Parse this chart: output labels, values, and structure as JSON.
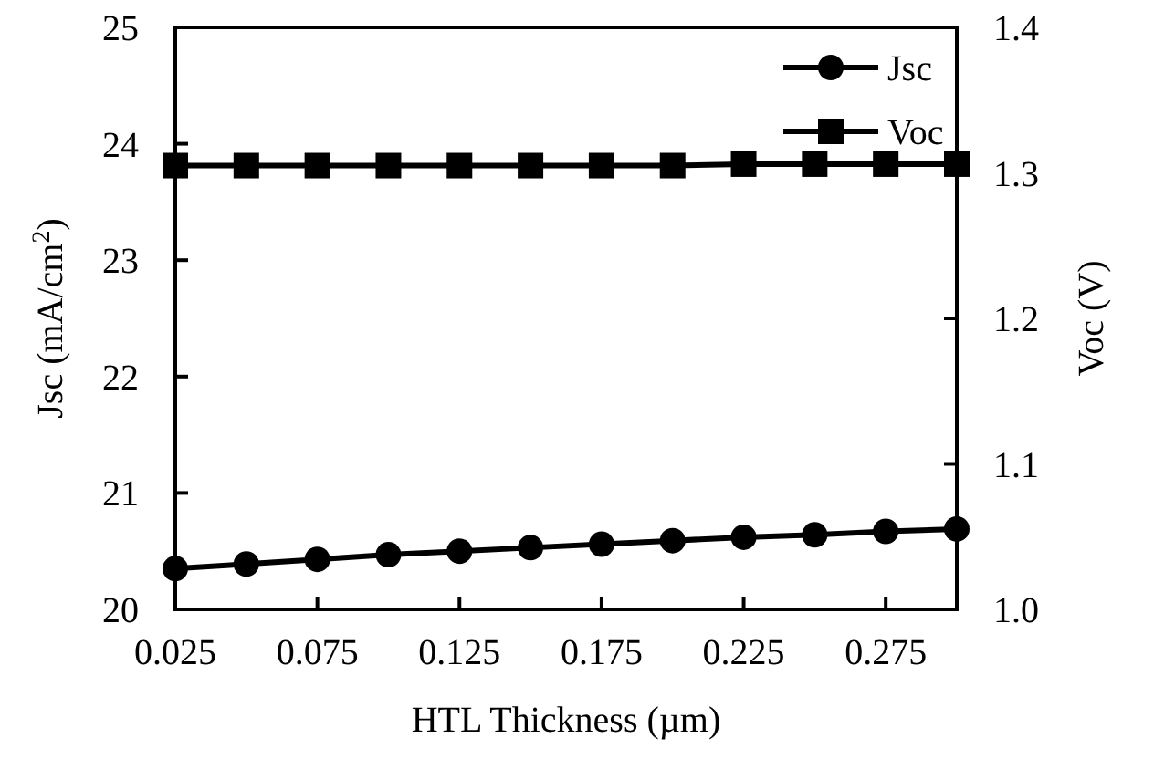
{
  "chart_data": {
    "type": "line",
    "xlabel": "HTL Thickness (µm)",
    "ylabel": "Jsc (mA/cm$^{2}$)",
    "y2label": "Voc (V)",
    "x": [
      0.025,
      0.05,
      0.075,
      0.1,
      0.125,
      0.15,
      0.175,
      0.2,
      0.225,
      0.25,
      0.275,
      0.3
    ],
    "xlim": [
      0.025,
      0.3
    ],
    "xticks": [
      0.025,
      0.075,
      0.125,
      0.175,
      0.225,
      0.275
    ],
    "ylim": [
      20,
      25
    ],
    "yticks": [
      20,
      21,
      22,
      23,
      24,
      25
    ],
    "y2lim": [
      1.0,
      1.4
    ],
    "y2ticks": [
      {
        "value": 1.0,
        "label": "1.0"
      },
      {
        "value": 1.1,
        "label": "1.1"
      },
      {
        "value": 1.2,
        "label": "1.2"
      },
      {
        "value": 1.3,
        "label": "1.3"
      },
      {
        "value": 1.4,
        "label": "1.4"
      }
    ],
    "series": [
      {
        "name": "Jsc",
        "color": "#000000",
        "marker": "circle",
        "values": [
          20.35,
          20.39,
          20.43,
          20.47,
          20.5,
          20.53,
          20.56,
          20.59,
          20.62,
          20.64,
          20.67,
          20.69
        ]
      },
      {
        "name": "Voc",
        "color": "#000000",
        "marker": "square",
        "axis": "y2",
        "values": [
          1.305,
          1.305,
          1.305,
          1.305,
          1.305,
          1.305,
          1.305,
          1.305,
          1.306,
          1.306,
          1.306,
          1.306
        ]
      }
    ],
    "legend": "top right",
    "grid": false,
    "line_style": "solid"
  }
}
